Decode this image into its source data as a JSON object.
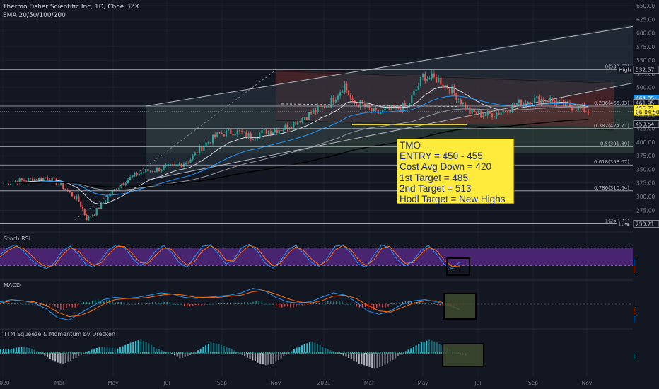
{
  "header": {
    "symbol_line": "Thermo Fisher Scientific Inc, 1D, Cboe BZX",
    "indicator_line": "EMA 20/50/100/200"
  },
  "annotation": {
    "lines": [
      "TMO",
      "ENTRY = 450 - 455",
      "Cost Avg Down = 420",
      "1st Target = 485",
      "2nd Target = 513",
      "Hodl Target = New Highs"
    ],
    "bg_color": "#ffeb3b",
    "text_color": "#1a2b8c"
  },
  "panes": {
    "stoch_title": "Stoch RSI",
    "macd_title": "MACD",
    "ttm_title": "TTM Squeeze & Momentum by Drecken"
  },
  "colors": {
    "background": "#131722",
    "up_candle": "#26a69a",
    "down_candle": "#ef5350",
    "stoch_band": "#5b2a8c",
    "macd_line": "#2196f3",
    "signal_line": "#ff6d00",
    "ttm_pos": "#26c6da",
    "ttm_neg": "#b2b5be"
  },
  "chart_data": [
    {
      "type": "line",
      "title": "Thermo Fisher Scientific Inc, 1D, Cboe BZX",
      "x_axis_labels": [
        "2020",
        "Mar",
        "May",
        "Jul",
        "Sep",
        "Nov",
        "2021",
        "Mar",
        "May",
        "Jul",
        "Sep",
        "Nov"
      ],
      "y_ticks": [
        250.0,
        275.0,
        300.0,
        325.0,
        350.0,
        375.0,
        400.0,
        425.0,
        450.0,
        475.0,
        500.0,
        525.0,
        550.0,
        575.0,
        600.0,
        625.0,
        650.0
      ],
      "ylim": [
        243,
        650
      ],
      "price_series": {
        "x": [
          "2020-01-02",
          "2020-01-20",
          "2020-02-10",
          "2020-02-24",
          "2020-03-09",
          "2020-03-16",
          "2020-03-23",
          "2020-04-06",
          "2020-04-20",
          "2020-05-04",
          "2020-05-18",
          "2020-06-01",
          "2020-06-15",
          "2020-06-29",
          "2020-07-13",
          "2020-07-27",
          "2020-08-10",
          "2020-08-24",
          "2020-09-08",
          "2020-09-21",
          "2020-10-05",
          "2020-10-19",
          "2020-11-02",
          "2020-11-09",
          "2020-11-16",
          "2020-11-30",
          "2020-12-14",
          "2020-12-28",
          "2021-01-11",
          "2021-01-25",
          "2021-02-08",
          "2021-02-22",
          "2021-03-08",
          "2021-03-22",
          "2021-04-05",
          "2021-04-19",
          "2021-05-03",
          "2021-05-17",
          "2021-06-01",
          "2021-06-10"
        ],
        "close": [
          325,
          330,
          335,
          318,
          292,
          260,
          270,
          305,
          330,
          345,
          350,
          355,
          365,
          395,
          415,
          420,
          410,
          420,
          425,
          440,
          455,
          470,
          505,
          470,
          470,
          452,
          460,
          465,
          520,
          515,
          490,
          455,
          450,
          455,
          470,
          478,
          478,
          468,
          462,
          455.71
        ]
      },
      "ema_20_50_100_200": "drawn as overlays",
      "fib_levels": [
        {
          "label": "0(532.57)",
          "value": 532.57
        },
        {
          "label": "0.236(465.93)",
          "value": 465.93
        },
        {
          "label": "0.382(424.71)",
          "value": 424.71
        },
        {
          "label": "0.5(391.39)",
          "value": 391.39
        },
        {
          "label": "0.618(358.07)",
          "value": 358.07
        },
        {
          "label": "0.786(310.64)",
          "value": 310.64
        },
        {
          "label": "1(250.21)",
          "value": 250.21
        }
      ],
      "price_labels": [
        {
          "text": "High",
          "value": "532.57"
        },
        {
          "text": "",
          "value": "464.05"
        },
        {
          "text": "",
          "value": "461.95"
        },
        {
          "text": "",
          "value": "455.71"
        },
        {
          "text": "",
          "value": "06:04:50"
        },
        {
          "text": "",
          "value": "450.54"
        },
        {
          "text": "Low",
          "value": "250.21"
        }
      ]
    },
    {
      "type": "line",
      "title": "Stoch RSI",
      "y_ticks": [
        80.0,
        0.0
      ],
      "last_values": [
        "31.76",
        "16.59"
      ],
      "k": [
        55,
        80,
        90,
        70,
        40,
        20,
        10,
        30,
        70,
        85,
        60,
        25,
        15,
        40,
        75,
        90,
        80,
        45,
        20,
        35,
        70,
        88,
        65,
        30,
        15,
        50,
        85,
        90,
        60,
        25,
        40,
        80,
        92,
        70,
        30,
        12,
        35,
        75,
        88,
        60,
        30,
        18,
        45,
        85,
        90,
        65,
        25,
        15,
        55,
        90,
        80,
        40,
        20,
        35,
        70,
        88,
        60,
        25,
        10,
        31.76
      ],
      "d": [
        50,
        70,
        85,
        78,
        55,
        30,
        15,
        22,
        55,
        80,
        72,
        40,
        20,
        30,
        60,
        85,
        84,
        60,
        30,
        28,
        55,
        80,
        75,
        45,
        22,
        35,
        70,
        88,
        72,
        38,
        35,
        65,
        88,
        80,
        45,
        20,
        28,
        60,
        84,
        70,
        42,
        22,
        35,
        72,
        88,
        75,
        40,
        20,
        40,
        78,
        85,
        55,
        28,
        30,
        58,
        82,
        72,
        40,
        18,
        16.59
      ]
    },
    {
      "type": "line",
      "title": "MACD",
      "y_ticks": [
        10.0,
        0.0
      ],
      "last_values": [
        "-0.45",
        "-4.66",
        "-5.11"
      ],
      "macd": [
        2,
        4,
        3,
        1,
        -4,
        -12,
        -14,
        -8,
        -2,
        4,
        6,
        5,
        6,
        8,
        10,
        9,
        6,
        5,
        6,
        7,
        8,
        10,
        14,
        12,
        6,
        2,
        1,
        2,
        6,
        10,
        8,
        2,
        -6,
        -9,
        -6,
        0,
        3,
        4,
        2,
        -1,
        -5.11
      ],
      "signal": [
        1,
        3,
        3,
        2,
        -1,
        -7,
        -11,
        -10,
        -6,
        0,
        4,
        5,
        5,
        6,
        8,
        9,
        8,
        6,
        6,
        6,
        7,
        8,
        11,
        12,
        9,
        5,
        2,
        1,
        3,
        7,
        8,
        5,
        -1,
        -6,
        -7,
        -3,
        1,
        3,
        3,
        0,
        -4.66
      ],
      "histogram": [
        1,
        1,
        0,
        -1,
        -3,
        -5,
        -3,
        2,
        4,
        4,
        2,
        0,
        1,
        2,
        2,
        0,
        -2,
        -1,
        0,
        1,
        1,
        2,
        3,
        0,
        -3,
        -3,
        -1,
        1,
        3,
        3,
        0,
        -3,
        -5,
        -3,
        1,
        3,
        2,
        1,
        -1,
        -1,
        -0.45
      ]
    },
    {
      "type": "bar",
      "title": "TTM Squeeze & Momentum by Drecken",
      "y_ticks": [
        40.0,
        0.0,
        -40.0
      ],
      "last_values": [
        "-7.28"
      ],
      "momentum": [
        8,
        12,
        14,
        10,
        2,
        -10,
        -20,
        -25,
        -18,
        -8,
        2,
        10,
        14,
        12,
        10,
        18,
        26,
        30,
        22,
        10,
        4,
        -2,
        -12,
        -8,
        2,
        14,
        24,
        20,
        14,
        6,
        -4,
        -14,
        -22,
        -28,
        -24,
        -12,
        0,
        12,
        20,
        26,
        18,
        8,
        2,
        -6,
        -14,
        -24,
        -30,
        -36,
        -30,
        -20,
        -8,
        4,
        14,
        24,
        30,
        24,
        14,
        4,
        -4,
        -7.28
      ]
    }
  ]
}
